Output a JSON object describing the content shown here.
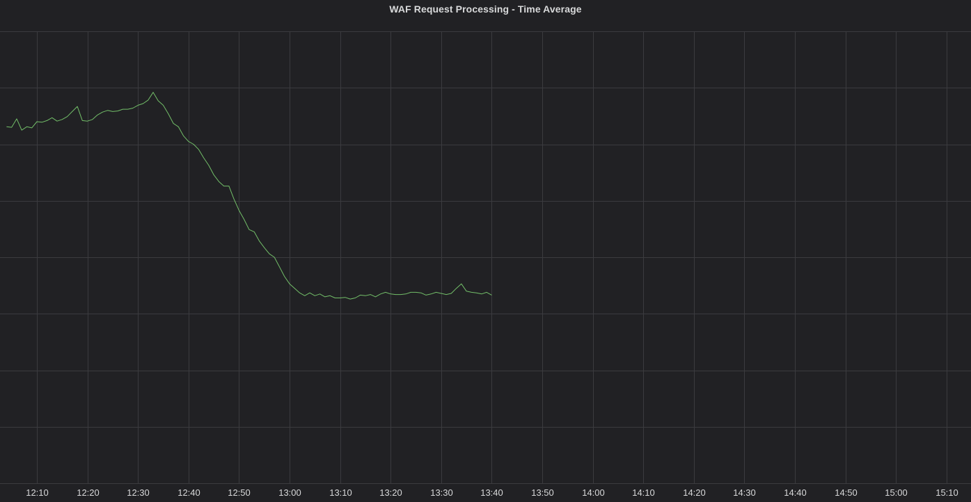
{
  "panel": {
    "title": "WAF Request Processing - Time Average"
  },
  "chart_data": {
    "type": "line",
    "title": "WAF Request Processing - Time Average",
    "xlabel": "",
    "ylabel": "",
    "x_ticks": [
      "12:10",
      "12:20",
      "12:30",
      "12:40",
      "12:50",
      "13:00",
      "13:10",
      "13:20",
      "13:30",
      "13:40",
      "13:50",
      "14:00",
      "14:10",
      "14:20",
      "14:30",
      "14:40",
      "14:50",
      "15:00",
      "15:10"
    ],
    "x_range": [
      "12:04",
      "15:17"
    ],
    "y_range": [
      0,
      8
    ],
    "y_gridlines": 8,
    "grid": true,
    "legend": "none",
    "line_color": "#73bf69",
    "background_color": "#212124",
    "grid_color": "#3b3b3f",
    "series": [
      {
        "values": [
          [
            "12:04",
            6.31
          ],
          [
            "12:05",
            6.3
          ],
          [
            "12:06",
            6.45
          ],
          [
            "12:07",
            6.25
          ],
          [
            "12:08",
            6.31
          ],
          [
            "12:09",
            6.29
          ],
          [
            "12:10",
            6.4
          ],
          [
            "12:11",
            6.39
          ],
          [
            "12:12",
            6.42
          ],
          [
            "12:13",
            6.47
          ],
          [
            "12:14",
            6.41
          ],
          [
            "12:15",
            6.44
          ],
          [
            "12:16",
            6.49
          ],
          [
            "12:17",
            6.58
          ],
          [
            "12:18",
            6.67
          ],
          [
            "12:19",
            6.42
          ],
          [
            "12:20",
            6.41
          ],
          [
            "12:21",
            6.44
          ],
          [
            "12:22",
            6.52
          ],
          [
            "12:23",
            6.57
          ],
          [
            "12:24",
            6.6
          ],
          [
            "12:25",
            6.58
          ],
          [
            "12:26",
            6.59
          ],
          [
            "12:27",
            6.62
          ],
          [
            "12:28",
            6.62
          ],
          [
            "12:29",
            6.64
          ],
          [
            "12:30",
            6.69
          ],
          [
            "12:31",
            6.72
          ],
          [
            "12:32",
            6.78
          ],
          [
            "12:33",
            6.92
          ],
          [
            "12:34",
            6.77
          ],
          [
            "12:35",
            6.69
          ],
          [
            "12:36",
            6.54
          ],
          [
            "12:37",
            6.37
          ],
          [
            "12:38",
            6.31
          ],
          [
            "12:39",
            6.15
          ],
          [
            "12:40",
            6.05
          ],
          [
            "12:41",
            6.0
          ],
          [
            "12:42",
            5.91
          ],
          [
            "12:43",
            5.76
          ],
          [
            "12:44",
            5.63
          ],
          [
            "12:45",
            5.46
          ],
          [
            "12:46",
            5.34
          ],
          [
            "12:47",
            5.26
          ],
          [
            "12:48",
            5.26
          ],
          [
            "12:49",
            5.03
          ],
          [
            "12:50",
            4.83
          ],
          [
            "12:51",
            4.67
          ],
          [
            "12:52",
            4.49
          ],
          [
            "12:53",
            4.45
          ],
          [
            "12:54",
            4.29
          ],
          [
            "12:55",
            4.17
          ],
          [
            "12:56",
            4.06
          ],
          [
            "12:57",
            4.0
          ],
          [
            "12:58",
            3.83
          ],
          [
            "12:59",
            3.66
          ],
          [
            "13:00",
            3.53
          ],
          [
            "13:01",
            3.45
          ],
          [
            "13:02",
            3.37
          ],
          [
            "13:03",
            3.32
          ],
          [
            "13:04",
            3.37
          ],
          [
            "13:05",
            3.32
          ],
          [
            "13:06",
            3.35
          ],
          [
            "13:07",
            3.3
          ],
          [
            "13:08",
            3.32
          ],
          [
            "13:09",
            3.28
          ],
          [
            "13:10",
            3.28
          ],
          [
            "13:11",
            3.29
          ],
          [
            "13:12",
            3.26
          ],
          [
            "13:13",
            3.28
          ],
          [
            "13:14",
            3.33
          ],
          [
            "13:15",
            3.32
          ],
          [
            "13:16",
            3.34
          ],
          [
            "13:17",
            3.3
          ],
          [
            "13:18",
            3.35
          ],
          [
            "13:19",
            3.38
          ],
          [
            "13:20",
            3.35
          ],
          [
            "13:21",
            3.34
          ],
          [
            "13:22",
            3.34
          ],
          [
            "13:23",
            3.35
          ],
          [
            "13:24",
            3.38
          ],
          [
            "13:25",
            3.38
          ],
          [
            "13:26",
            3.37
          ],
          [
            "13:27",
            3.33
          ],
          [
            "13:28",
            3.35
          ],
          [
            "13:29",
            3.38
          ],
          [
            "13:30",
            3.36
          ],
          [
            "13:31",
            3.34
          ],
          [
            "13:32",
            3.36
          ],
          [
            "13:33",
            3.45
          ],
          [
            "13:34",
            3.53
          ],
          [
            "13:35",
            3.4
          ],
          [
            "13:36",
            3.38
          ],
          [
            "13:37",
            3.37
          ],
          [
            "13:38",
            3.35
          ],
          [
            "13:39",
            3.38
          ],
          [
            "13:40",
            3.33
          ]
        ]
      }
    ]
  }
}
